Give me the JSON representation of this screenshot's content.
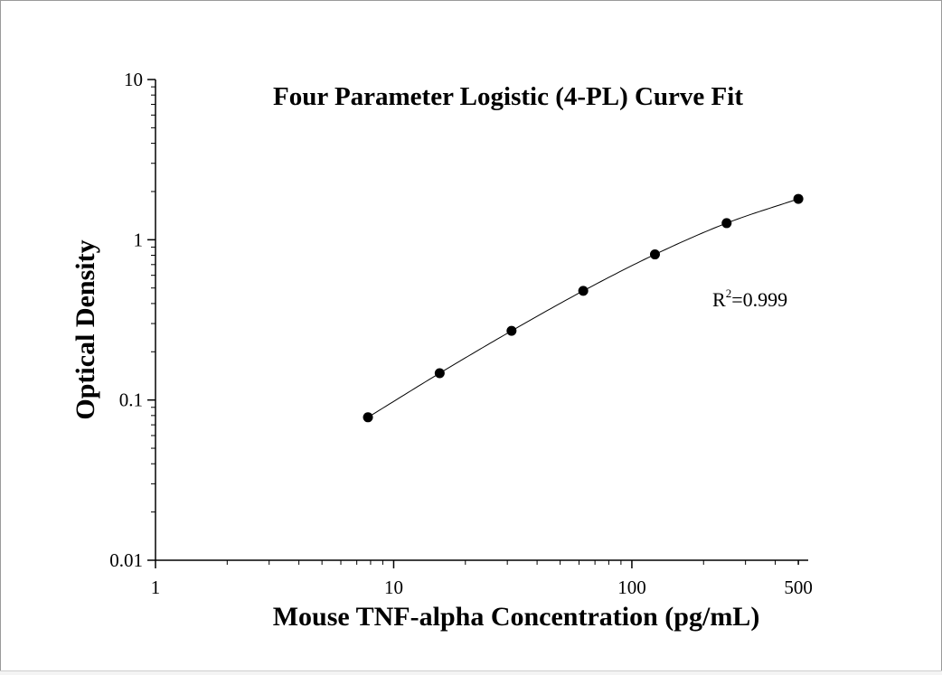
{
  "chart_data": {
    "type": "scatter",
    "title": "Four Parameter Logistic (4-PL) Curve Fit",
    "xlabel": "Mouse TNF-alpha Concentration (pg/mL)",
    "ylabel": "Optical Density",
    "xscale": "log",
    "yscale": "log",
    "xlim": [
      1,
      550
    ],
    "ylim": [
      0.01,
      10
    ],
    "x_ticks": [
      1,
      10,
      100,
      500
    ],
    "x_tick_labels": [
      "1",
      "10",
      "100",
      "500"
    ],
    "y_ticks": [
      0.01,
      0.1,
      1,
      10
    ],
    "y_tick_labels": [
      "0.01",
      "0.1",
      "1",
      "10"
    ],
    "grid": false,
    "legend": "none",
    "series": [
      {
        "x": [
          7.8,
          15.6,
          31.25,
          62.5,
          125,
          250,
          500
        ],
        "y": [
          0.078,
          0.147,
          0.27,
          0.48,
          0.81,
          1.27,
          1.8
        ]
      }
    ],
    "fit": {
      "model": "4-PL",
      "r2_base": "R",
      "r2_sup": "2",
      "r2_value": "=0.999"
    }
  }
}
